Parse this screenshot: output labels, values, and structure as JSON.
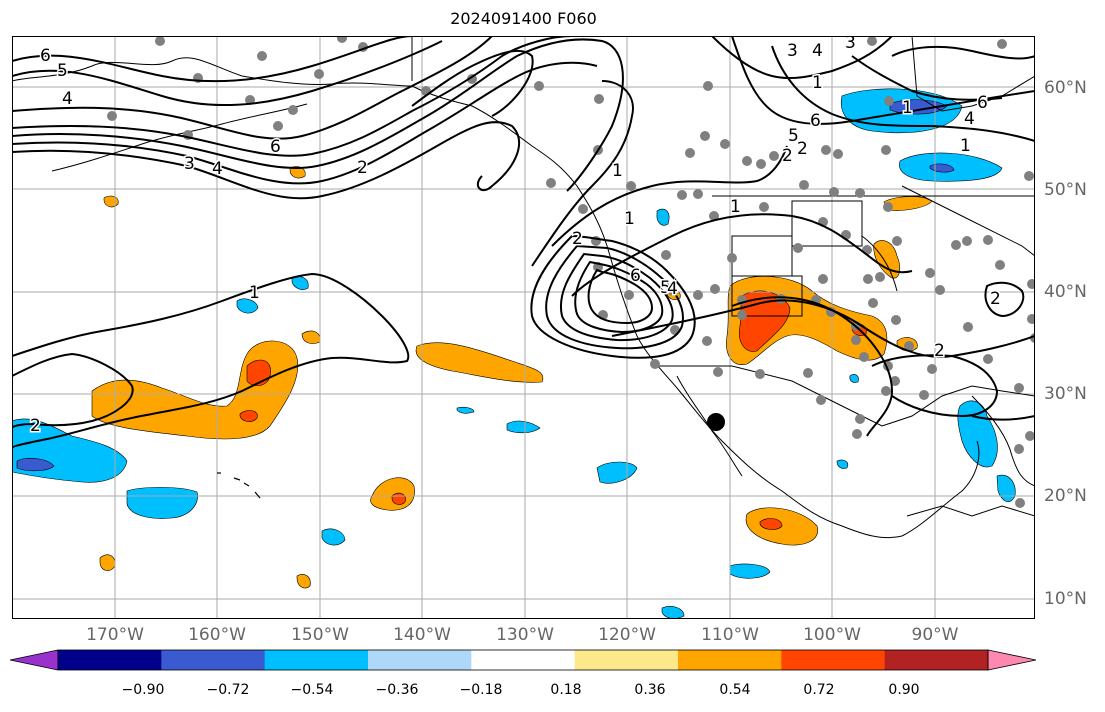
{
  "title": "2024091400 F060",
  "lon_labels": [
    "170°W",
    "160°W",
    "150°W",
    "140°W",
    "130°W",
    "120°W",
    "110°W",
    "100°W",
    "90°W"
  ],
  "lat_labels": [
    "60°N",
    "50°N",
    "40°N",
    "30°N",
    "20°N",
    "10°N"
  ],
  "colorbar": {
    "colors": [
      "#9932cc",
      "#00008b",
      "#3a5bd0",
      "#00bfff",
      "#add8f8",
      "#ffffff",
      "#fde98a",
      "#ffa500",
      "#ff4500",
      "#b22222",
      "#ff88b0"
    ],
    "tick_labels": [
      "−0.90",
      "−0.72",
      "−0.54",
      "−0.36",
      "−0.18",
      "0.18",
      "0.36",
      "0.54",
      "0.72",
      "0.90"
    ]
  },
  "contour_labels": [
    "6",
    "5",
    "4",
    "3",
    "4",
    "2",
    "6",
    "2",
    "1",
    "1",
    "2",
    "6",
    "5",
    "4",
    "3",
    "4",
    "3",
    "5",
    "6",
    "6",
    "4",
    "1",
    "1",
    "1",
    "1",
    "2",
    "2",
    "2",
    "2",
    "1"
  ]
}
